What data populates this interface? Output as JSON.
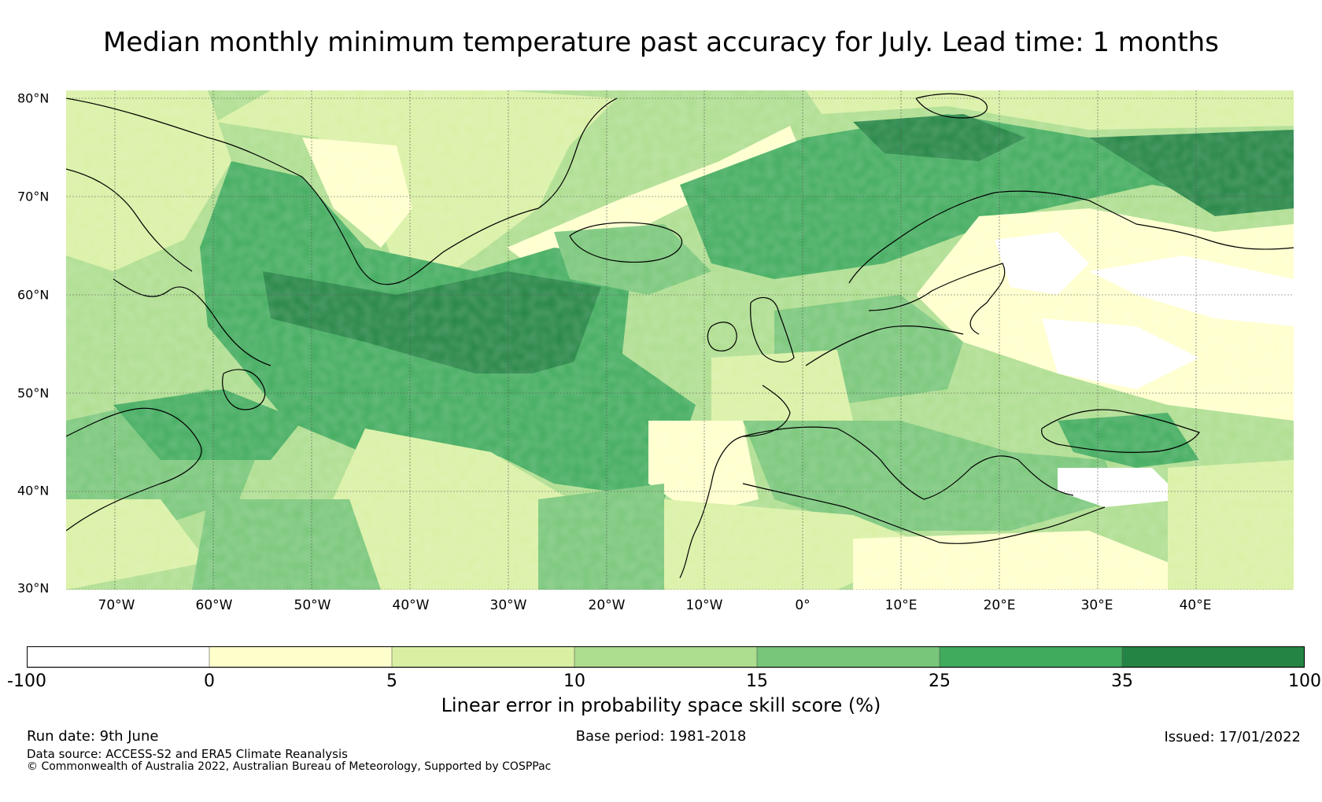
{
  "title": "Median monthly minimum temperature past accuracy for July. Lead time: 1 months",
  "map": {
    "lat_labels": [
      "80°N",
      "70°N",
      "60°N",
      "50°N",
      "40°N",
      "30°N"
    ],
    "lat_values": [
      80,
      70,
      60,
      50,
      40,
      30
    ],
    "lon_labels": [
      "70°W",
      "60°W",
      "50°W",
      "40°W",
      "30°W",
      "20°W",
      "10°W",
      "0°",
      "10°E",
      "20°E",
      "30°E",
      "40°E"
    ],
    "lon_values": [
      -70,
      -60,
      -50,
      -40,
      -30,
      -20,
      -10,
      0,
      10,
      20,
      30,
      40
    ],
    "lon_range": [
      -75,
      50
    ],
    "lat_range": [
      30,
      81
    ],
    "grid": true,
    "land_outline_color": "#000000"
  },
  "colorbar": {
    "tick_labels": [
      "-100",
      "0",
      "5",
      "10",
      "15",
      "25",
      "35",
      "100"
    ],
    "colors": [
      "#ffffff",
      "#ffffcc",
      "#d9f0a3",
      "#addd8e",
      "#78c679",
      "#41ab5d",
      "#238443"
    ],
    "label": "Linear error in probability space skill score (%)"
  },
  "footer": {
    "run_date": "Run date: 9th June",
    "base_period": "Base period: 1981-2018",
    "issued": "Issued: 17/01/2022",
    "data_source": "Data source: ACCESS-S2 and ERA5 Climate Reanalysis",
    "copyright": "© Commonwealth of Australia 2022, Australian Bureau of Meteorology, Supported by COSPPac"
  }
}
